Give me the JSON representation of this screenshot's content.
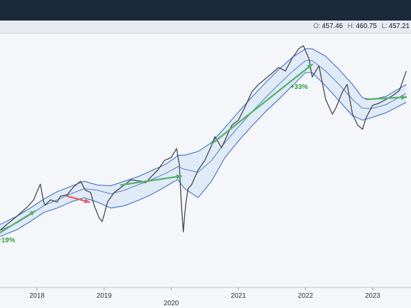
{
  "header": {
    "ohlc": [
      {
        "key": "O:",
        "value": "457.46"
      },
      {
        "key": "H:",
        "value": "460.75"
      },
      {
        "key": "L:",
        "value": "457.21"
      }
    ]
  },
  "chart_data": {
    "type": "line",
    "x_ticks": [
      "2018",
      "2019",
      "2020",
      "2021",
      "2022",
      "2023"
    ],
    "x_tick_lower": "2020",
    "grid": false,
    "series": [
      {
        "role": "price",
        "color": "#444444",
        "x": [
          2017.45,
          2017.55,
          2017.7,
          2017.85,
          2017.95,
          2018.03,
          2018.05,
          2018.1,
          2018.12,
          2018.2,
          2018.3,
          2018.35,
          2018.45,
          2018.55,
          2018.65,
          2018.72,
          2018.8,
          2018.85,
          2018.93,
          2018.97,
          2019.0,
          2019.05,
          2019.15,
          2019.3,
          2019.4,
          2019.55,
          2019.62,
          2019.7,
          2019.8,
          2019.9,
          2020.0,
          2020.08,
          2020.12,
          2020.15,
          2020.18,
          2020.2,
          2020.22,
          2020.25,
          2020.3,
          2020.4,
          2020.5,
          2020.6,
          2020.65,
          2020.75,
          2020.8,
          2020.9,
          2021.0,
          2021.1,
          2021.2,
          2021.3,
          2021.5,
          2021.6,
          2021.7,
          2021.8,
          2021.9,
          2021.97,
          2022.0,
          2022.05,
          2022.1,
          2022.2,
          2022.3,
          2022.4,
          2022.45,
          2022.55,
          2022.62,
          2022.7,
          2022.78,
          2022.85,
          2022.9,
          2023.0,
          2023.1,
          2023.2,
          2023.3,
          2023.4,
          2023.5
        ],
        "y": [
          224,
          232,
          243,
          255,
          265,
          282,
          286,
          262,
          258,
          265,
          262,
          270,
          272,
          283,
          290,
          278,
          275,
          258,
          240,
          236,
          245,
          262,
          275,
          285,
          292,
          290,
          288,
          296,
          305,
          318,
          322,
          334,
          312,
          260,
          222,
          245,
          262,
          280,
          285,
          305,
          318,
          338,
          350,
          335,
          345,
          365,
          372,
          390,
          410,
          420,
          435,
          443,
          438,
          455,
          468,
          472,
          465,
          455,
          430,
          445,
          400,
          380,
          388,
          410,
          420,
          380,
          365,
          360,
          375,
          392,
          395,
          400,
          405,
          412,
          438
        ]
      },
      {
        "role": "band-upper",
        "color": "#3a6fbf",
        "x": [
          2017.45,
          2017.7,
          2017.9,
          2018.1,
          2018.3,
          2018.5,
          2018.7,
          2018.9,
          2019.1,
          2019.3,
          2019.5,
          2019.7,
          2019.9,
          2020.05,
          2020.1,
          2020.2,
          2020.4,
          2020.6,
          2020.8,
          2021.0,
          2021.2,
          2021.4,
          2021.6,
          2021.8,
          2022.0,
          2022.1,
          2022.3,
          2022.5,
          2022.7,
          2022.85,
          2023.0,
          2023.2,
          2023.5
        ],
        "y": [
          232,
          243,
          254,
          266,
          276,
          283,
          290,
          285,
          284,
          290,
          296,
          304,
          312,
          321,
          325,
          325,
          330,
          342,
          362,
          383,
          403,
          422,
          440,
          456,
          468,
          468,
          458,
          440,
          420,
          402,
          400,
          404,
          420
        ]
      },
      {
        "role": "band-mid",
        "color": "#3a6fbf",
        "x": [
          2017.45,
          2017.7,
          2017.9,
          2018.1,
          2018.3,
          2018.5,
          2018.7,
          2018.9,
          2019.1,
          2019.3,
          2019.5,
          2019.7,
          2019.9,
          2020.05,
          2020.1,
          2020.2,
          2020.4,
          2020.6,
          2020.8,
          2021.0,
          2021.2,
          2021.4,
          2021.6,
          2021.8,
          2022.0,
          2022.1,
          2022.3,
          2022.5,
          2022.7,
          2022.85,
          2023.0,
          2023.2,
          2023.5
        ],
        "y": [
          224,
          234,
          245,
          257,
          265,
          273,
          280,
          278,
          273,
          278,
          285,
          292,
          300,
          307,
          310,
          306,
          302,
          318,
          342,
          363,
          383,
          402,
          420,
          437,
          452,
          452,
          438,
          420,
          400,
          388,
          388,
          393,
          408
        ]
      },
      {
        "role": "band-lower",
        "color": "#3a6fbf",
        "x": [
          2017.45,
          2017.7,
          2017.9,
          2018.1,
          2018.3,
          2018.5,
          2018.7,
          2018.9,
          2019.1,
          2019.3,
          2019.5,
          2019.7,
          2019.9,
          2020.05,
          2020.1,
          2020.2,
          2020.4,
          2020.6,
          2020.8,
          2021.0,
          2021.2,
          2021.4,
          2021.6,
          2021.8,
          2022.0,
          2022.1,
          2022.3,
          2022.5,
          2022.7,
          2022.85,
          2023.0,
          2023.2,
          2023.5
        ],
        "y": [
          216,
          225,
          236,
          248,
          254,
          262,
          268,
          262,
          254,
          257,
          264,
          272,
          282,
          290,
          292,
          280,
          268,
          290,
          322,
          344,
          364,
          383,
          400,
          418,
          436,
          436,
          418,
          398,
          378,
          372,
          376,
          382,
          396
        ]
      }
    ],
    "trend_arrows": [
      {
        "color": "#55b36a",
        "from": [
          2017.45,
          221
        ],
        "to": [
          2017.97,
          250
        ],
        "label": "+19%"
      },
      {
        "color": "#e06060",
        "from": [
          2018.45,
          270
        ],
        "to": [
          2018.78,
          262
        ],
        "label": ""
      },
      {
        "color": "#55b36a",
        "from": [
          2019.25,
          285
        ],
        "to": [
          2020.15,
          297
        ],
        "label": ""
      },
      {
        "color": "#55b36a",
        "from": [
          2020.6,
          340
        ],
        "to": [
          2022.1,
          447
        ],
        "label": "+33%"
      },
      {
        "color": "#55b36a",
        "from": [
          2022.9,
          400
        ],
        "to": [
          2023.5,
          403
        ],
        "label": ""
      }
    ]
  }
}
